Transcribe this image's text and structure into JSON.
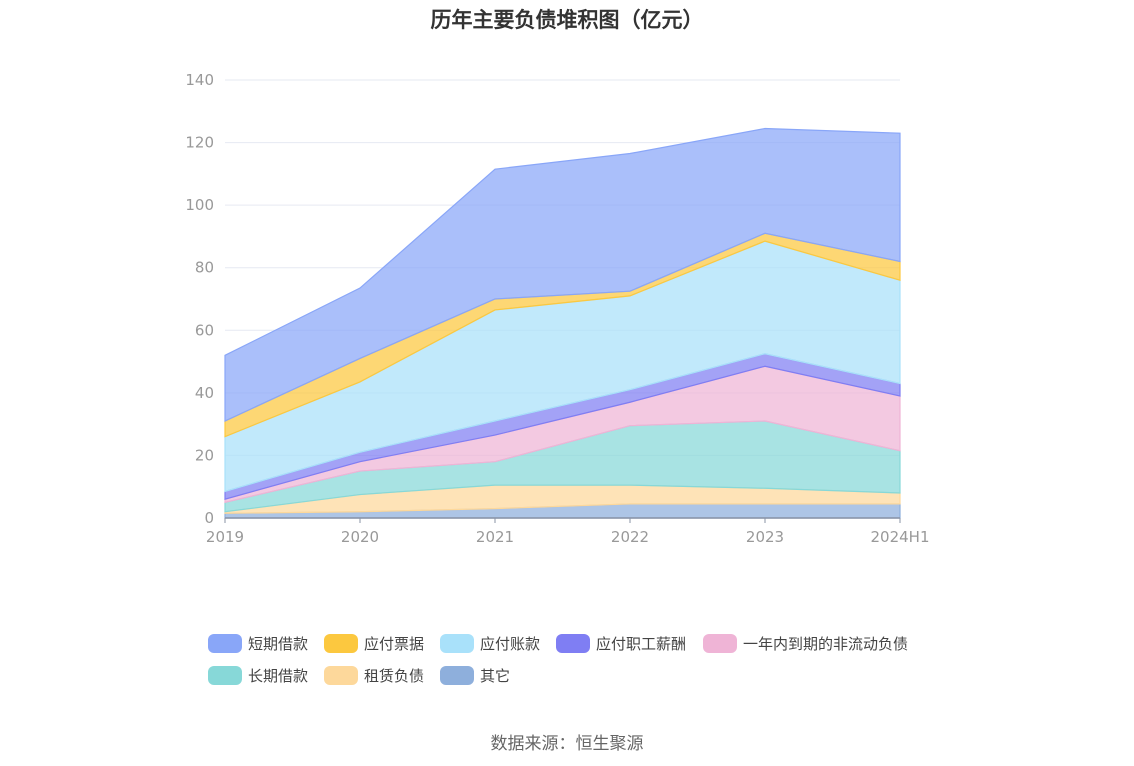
{
  "chart_data": {
    "type": "area",
    "stacked": true,
    "title": "历年主要负债堆积图（亿元）",
    "xlabel": "",
    "ylabel": "",
    "categories": [
      "2019",
      "2020",
      "2021",
      "2022",
      "2023",
      "2024H1"
    ],
    "ylim": [
      0,
      140
    ],
    "yticks": [
      0,
      20,
      40,
      60,
      80,
      100,
      120,
      140
    ],
    "grid": true,
    "legend_position": "bottom",
    "series": [
      {
        "name": "其它",
        "color": "#8eafdc",
        "values": [
          1.5,
          2.0,
          3.0,
          4.5,
          4.5,
          4.5
        ]
      },
      {
        "name": "租赁负债",
        "color": "#fdd89b",
        "values": [
          0.5,
          5.5,
          7.5,
          6.0,
          5.0,
          3.5
        ]
      },
      {
        "name": "长期借款",
        "color": "#87d8d8",
        "values": [
          3.0,
          7.5,
          7.5,
          19.0,
          21.5,
          13.5
        ]
      },
      {
        "name": "一年内到期的非流动负债",
        "color": "#efb4d6",
        "values": [
          1.0,
          3.0,
          8.5,
          7.5,
          17.5,
          17.5
        ]
      },
      {
        "name": "应付职工薪酬",
        "color": "#7f7ef3",
        "values": [
          2.5,
          3.0,
          4.5,
          4.0,
          4.0,
          4.0
        ]
      },
      {
        "name": "应付账款",
        "color": "#a9e1fa",
        "values": [
          17.5,
          22.5,
          35.5,
          30.0,
          36.0,
          33.0
        ]
      },
      {
        "name": "应付票据",
        "color": "#fcc83f",
        "values": [
          5.0,
          7.5,
          3.5,
          1.5,
          2.5,
          6.0
        ]
      },
      {
        "name": "短期借款",
        "color": "#89a6f8",
        "values": [
          21.0,
          22.5,
          41.5,
          44.0,
          33.5,
          41.0
        ]
      }
    ],
    "legend_order": [
      "短期借款",
      "应付票据",
      "应付账款",
      "应付职工薪酬",
      "一年内到期的非流动负债",
      "长期借款",
      "租赁负债",
      "其它"
    ]
  },
  "footer": {
    "source": "数据来源：恒生聚源"
  }
}
